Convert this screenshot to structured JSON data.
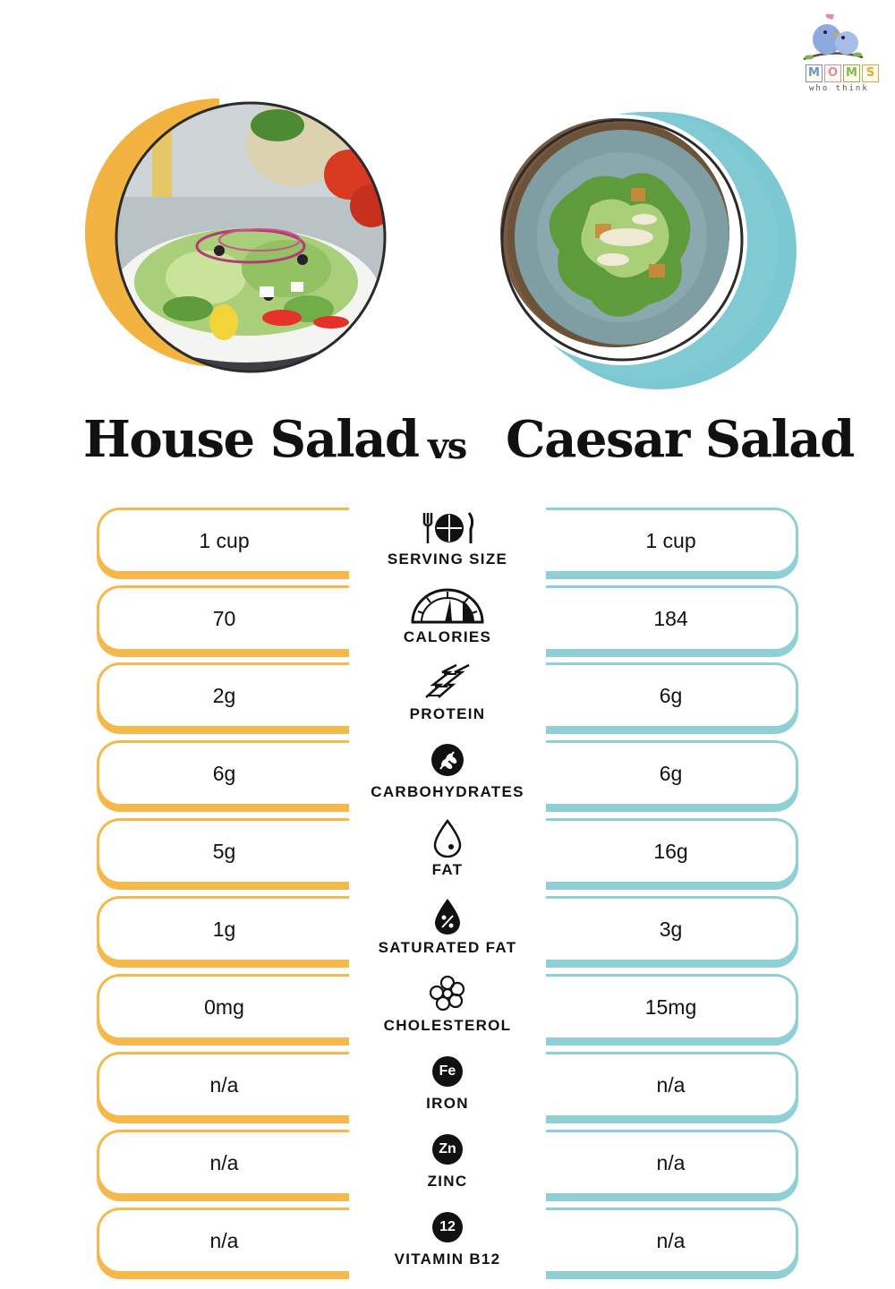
{
  "brand": {
    "letters": [
      "M",
      "O",
      "M",
      "S"
    ],
    "tagline": "who think"
  },
  "header": {
    "left_title": "House Salad",
    "vs": "vs",
    "right_title": "Caesar Salad"
  },
  "colors": {
    "left_accent": "#f5b84a",
    "right_accent": "#8fd0d6"
  },
  "rows": [
    {
      "label": "SERVING SIZE",
      "icon": "utensils-plate-icon",
      "left": "1 cup",
      "right": "1 cup"
    },
    {
      "label": "CALORIES",
      "icon": "gauge-icon",
      "left": "70",
      "right": "184"
    },
    {
      "label": "PROTEIN",
      "icon": "protein-helix-icon",
      "left": "2g",
      "right": "6g"
    },
    {
      "label": "CARBOHYDRATES",
      "icon": "wheat-icon",
      "left": "6g",
      "right": "6g"
    },
    {
      "label": "FAT",
      "icon": "drop-icon",
      "left": "5g",
      "right": "16g"
    },
    {
      "label": "SATURATED FAT",
      "icon": "percent-drop-icon",
      "left": "1g",
      "right": "3g"
    },
    {
      "label": "CHOLESTEROL",
      "icon": "cholesterol-icon",
      "left": "0mg",
      "right": "15mg"
    },
    {
      "label": "IRON",
      "icon": "iron-icon",
      "badge": "Fe",
      "left": "n/a",
      "right": "n/a"
    },
    {
      "label": "ZINC",
      "icon": "zinc-icon",
      "badge": "Zn",
      "left": "n/a",
      "right": "n/a"
    },
    {
      "label": "VITAMIN B12",
      "icon": "vitamin-b12-icon",
      "badge": "12",
      "left": "n/a",
      "right": "n/a"
    }
  ]
}
